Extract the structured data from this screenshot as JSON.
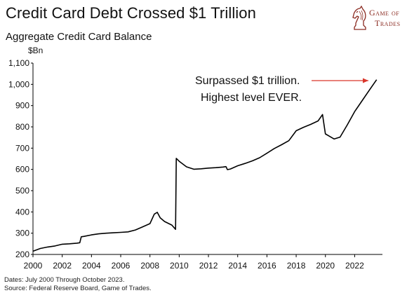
{
  "header": {
    "title": "Credit Card Debt Crossed $1 Trillion",
    "subtitle": "Aggregate Credit Card Balance"
  },
  "brand": {
    "line1": "Game of",
    "line2": "Trades",
    "icon": "knight-chess-piece-icon",
    "color": "#8a2a20"
  },
  "footer": {
    "dates": "Dates: July 2000 Through October 2023.",
    "source": "Source: Federal Reserve Board, Game of Trades."
  },
  "chart_data": {
    "type": "line",
    "title": "Credit Card Debt Crossed $1 Trillion",
    "subtitle": "Aggregate Credit Card Balance",
    "ylabel": "$Bn",
    "xlabel": "",
    "xlim": [
      2000,
      2023.9
    ],
    "ylim": [
      200,
      1100
    ],
    "x_ticks": [
      "2000",
      "2002",
      "2004",
      "2006",
      "2008",
      "2010",
      "2012",
      "2014",
      "2016",
      "2018",
      "2020",
      "2022"
    ],
    "y_ticks": [
      "200",
      "300",
      "400",
      "500",
      "600",
      "700",
      "800",
      "900",
      "1,000",
      "1,100"
    ],
    "line_color": "#000000",
    "annotation": {
      "lines": [
        "Surpassed $1 trillion.",
        "Highest level EVER."
      ],
      "arrow_color": "#d9362b"
    },
    "series": [
      {
        "x": [
          2000.0,
          2000.5,
          2001.0,
          2001.5,
          2002.0,
          2002.5,
          2003.0,
          2003.2,
          2003.3,
          2003.5,
          2004.0,
          2004.5,
          2005.0,
          2005.5,
          2006.0,
          2006.5,
          2007.0,
          2007.5,
          2008.0,
          2008.3,
          2008.5,
          2008.7,
          2009.0,
          2009.5,
          2009.75,
          2009.8,
          2010.0,
          2010.5,
          2011.0,
          2011.5,
          2012.0,
          2012.5,
          2013.0,
          2013.2,
          2013.3,
          2013.5,
          2014.0,
          2014.5,
          2015.0,
          2015.5,
          2016.0,
          2016.5,
          2017.0,
          2017.5,
          2018.0,
          2018.5,
          2019.0,
          2019.5,
          2019.8,
          2020.0,
          2020.3,
          2020.6,
          2021.0,
          2021.5,
          2022.0,
          2022.5,
          2023.0,
          2023.5
        ],
        "y": [
          215,
          228,
          235,
          240,
          248,
          250,
          253,
          255,
          283,
          285,
          292,
          297,
          300,
          302,
          304,
          306,
          315,
          330,
          345,
          390,
          398,
          372,
          355,
          338,
          318,
          652,
          638,
          612,
          601,
          603,
          606,
          608,
          611,
          613,
          599,
          602,
          617,
          628,
          640,
          655,
          676,
          698,
          716,
          735,
          782,
          798,
          812,
          828,
          858,
          767,
          755,
          743,
          752,
          810,
          872,
          922,
          972,
          1022
        ]
      }
    ]
  }
}
